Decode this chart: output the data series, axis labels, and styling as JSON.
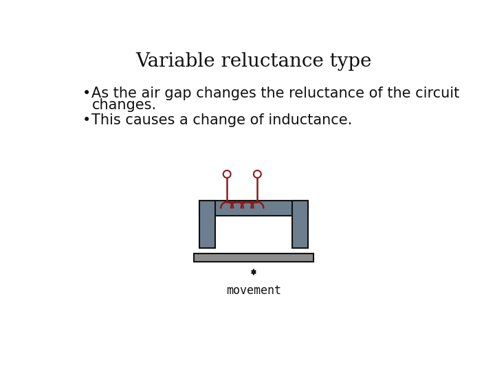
{
  "title": "Variable reluctance type",
  "bullet1_line1": "As the air gap changes the reluctance of the circuit",
  "bullet1_line2": "changes.",
  "bullet2": "This causes a change of inductance.",
  "movement_label": "movement",
  "bg_color": "#ffffff",
  "core_color": "#6d7f8f",
  "core_outline": "#111111",
  "coil_color": "#8b1a1a",
  "mover_color": "#8d8d8d",
  "mover_outline": "#111111",
  "title_fontsize": 20,
  "bullet_fontsize": 15,
  "movement_fontsize": 12
}
